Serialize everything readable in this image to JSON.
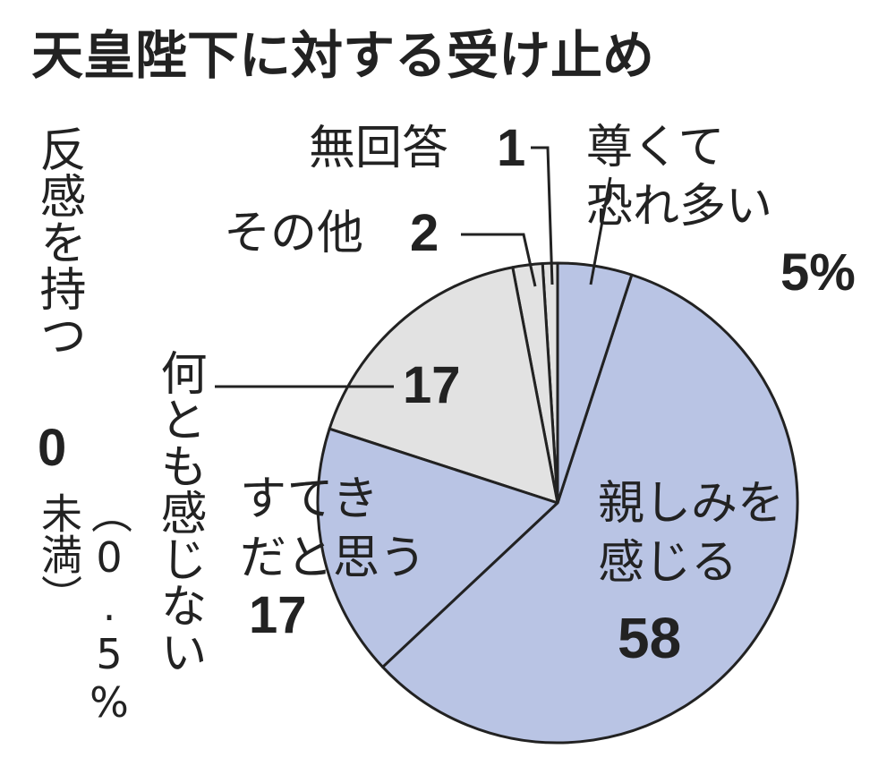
{
  "chart_data": {
    "type": "pie",
    "title": "天皇陛下に対する受け止め",
    "categories": [
      "尊くて\n恐れ多い",
      "親しみを\n感じる",
      "すてき\nだと思う",
      "何とも感じない",
      "その他",
      "無回答",
      "反感を持つ"
    ],
    "values": [
      5,
      58,
      17,
      17,
      2,
      1,
      0
    ],
    "value_labels": [
      "5%",
      "58",
      "17",
      "17",
      "2",
      "1",
      "0"
    ],
    "colors": [
      "#b9c4e4",
      "#b9c4e4",
      "#b9c4e4",
      "#e2e2e2",
      "#e2e2e2",
      "#e2e2e2",
      "#e2e2e2"
    ],
    "annotation": "（0.5%未満）"
  }
}
